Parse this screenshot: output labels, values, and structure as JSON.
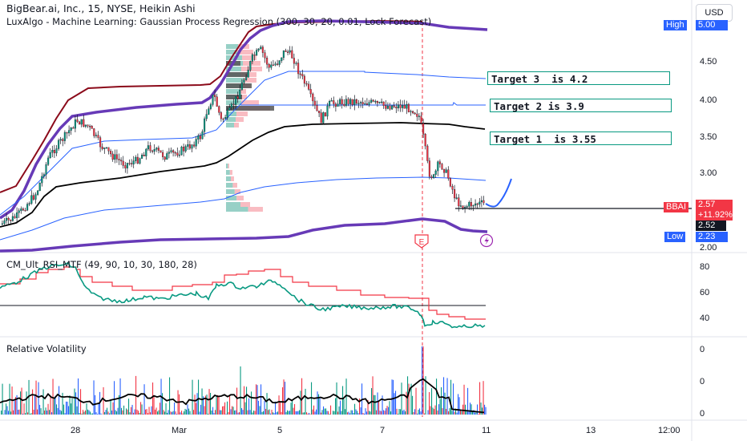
{
  "header": {
    "symbol_title": "BigBear.ai, Inc., 15, NYSE, Heikin Ashi",
    "indicator_title": "LuxAlgo - Machine Learning: Gaussian Process Regression (300, 30, 20, 0.01, Lock Forecast)"
  },
  "currency_button": "USD",
  "targets": [
    {
      "label": "Target 3  is 4.2"
    },
    {
      "label": "Target 2 is 3.9"
    },
    {
      "label": "Target 1  is 3.55"
    }
  ],
  "price_axis": {
    "ticks": [
      "4.50",
      "4.00",
      "3.50",
      "3.00",
      "2.00"
    ],
    "high_label": "High",
    "high_value": "5.00",
    "low_label": "Low",
    "low_value": "2.23",
    "ticker": "BBAI",
    "last_price": "2.57",
    "change": "+11.92%",
    "current_line": "2.52"
  },
  "rsi_panel": {
    "title": "CM_Ult_RSI_MTF (49, 90, 10, 30, 180, 28)",
    "ticks": [
      "80",
      "60",
      "40"
    ]
  },
  "volatility_panel": {
    "title": "Relative Volatility",
    "ticks": [
      "0",
      "0",
      "0"
    ]
  },
  "time_axis": {
    "labels": [
      "28",
      "Mar",
      "5",
      "7",
      "11",
      "13",
      "12:00"
    ]
  },
  "markers": {
    "earnings": "E",
    "dividend_icon": "lightning-icon"
  },
  "colors": {
    "up": "#089981",
    "down": "#f23645",
    "purple": "#673ab7",
    "crimson": "#8b0a1a",
    "blue": "#2962ff",
    "blue_axis": "#2962ff",
    "forecast": "#2962ff"
  }
}
